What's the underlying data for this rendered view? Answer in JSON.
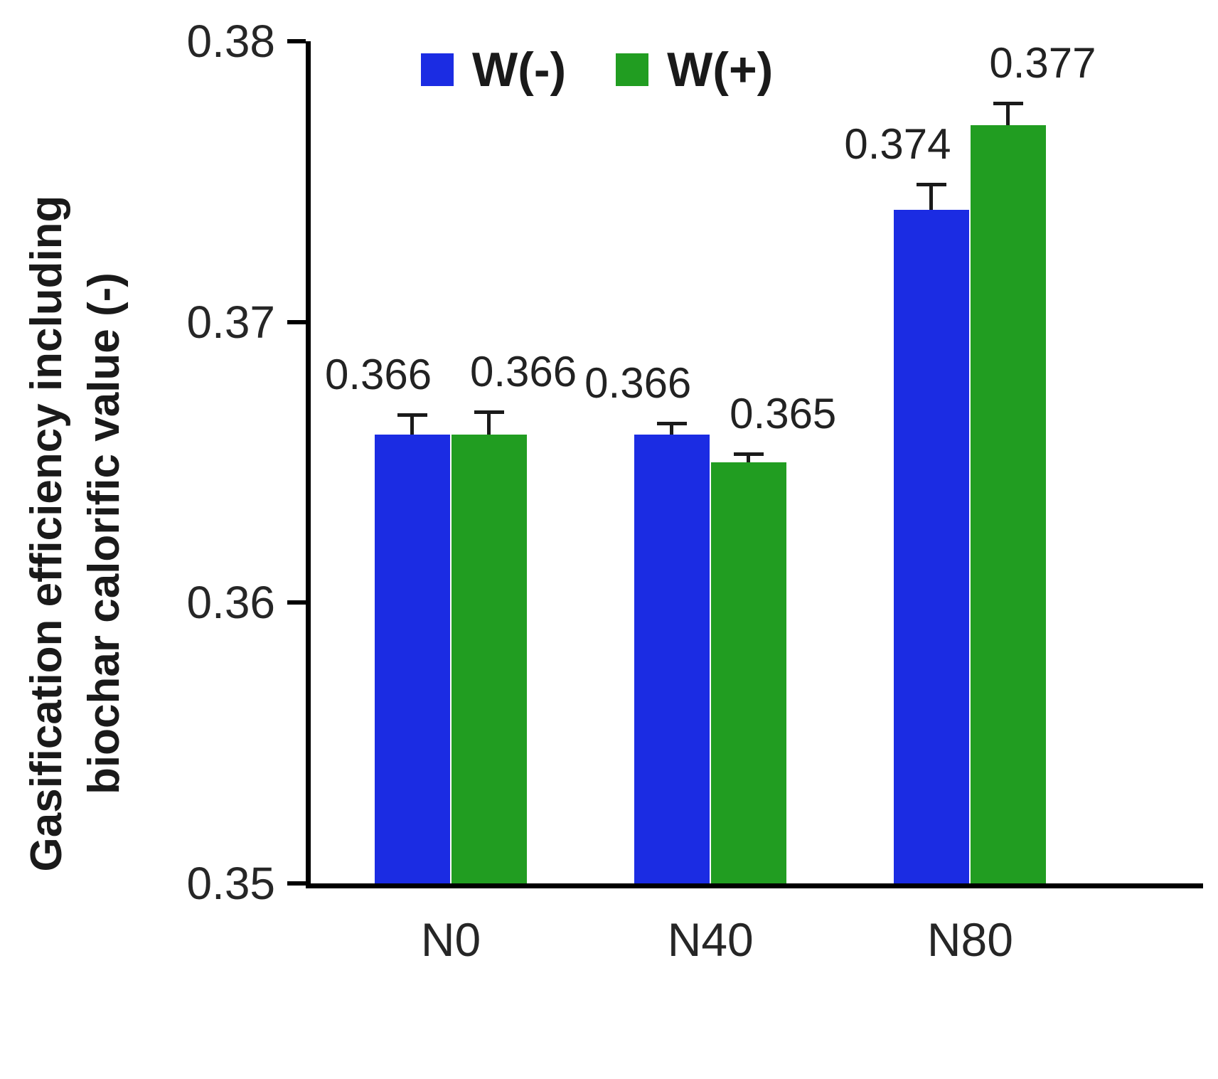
{
  "figure": {
    "background": "#ffffff"
  },
  "chart_data": {
    "type": "bar",
    "title": "",
    "categories": [
      "N0",
      "N40",
      "N80"
    ],
    "series": [
      {
        "name": "W(-)",
        "color": "#1b2ce3",
        "values": [
          0.366,
          0.366,
          0.374
        ],
        "errors": [
          0.0007,
          0.0004,
          0.0009
        ],
        "labels": [
          "0.366",
          "0.366",
          "0.374"
        ]
      },
      {
        "name": "W(+)",
        "color": "#219d21",
        "values": [
          0.366,
          0.365,
          0.377
        ],
        "errors": [
          0.0008,
          0.0003,
          0.0008
        ],
        "labels": [
          "0.366",
          "0.365",
          "0.377"
        ]
      }
    ],
    "xlabel": "",
    "ylabel": "Gasification efficiency including biochar calorific value (-)",
    "ylabel_lines": [
      "Gasification efficiency including",
      "biochar calorific value (-)"
    ],
    "ylim": [
      0.35,
      0.38
    ],
    "yticks": [
      0.38,
      0.37,
      0.36,
      0.35
    ],
    "ytick_labels": [
      "0.38",
      "0.37",
      "0.36",
      "0.35"
    ],
    "grid": false,
    "legend_position": "top-center",
    "error_bar_color": "#1a1a1a",
    "axis_color": "#000000",
    "text_color": "#262626"
  }
}
